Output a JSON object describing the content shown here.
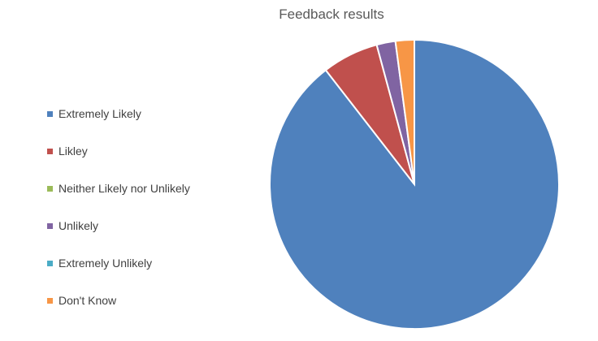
{
  "chart_data": {
    "type": "pie",
    "title": "Feedback results",
    "categories": [
      "Extremely Likely",
      "Likley",
      "Neither Likely nor Unlikely",
      "Unlikely",
      "Extremely Unlikely",
      "Don't Know"
    ],
    "values": [
      89.5,
      6.3,
      0,
      2.1,
      0,
      2.1
    ],
    "colors": [
      "#4f81bd",
      "#c0504d",
      "#9bbb59",
      "#8064a2",
      "#4bacc6",
      "#f79646"
    ],
    "legend_position": "left",
    "start_angle": "top, clockwise"
  }
}
